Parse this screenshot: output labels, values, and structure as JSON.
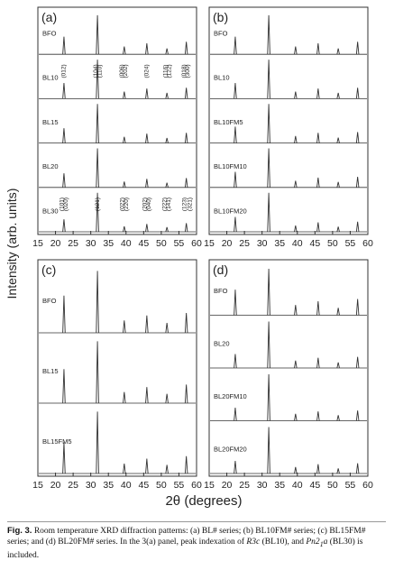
{
  "figure": {
    "ylabel": "Intensity (arb. units)",
    "xlabel": "2θ (degrees)"
  },
  "chart_data": [
    {
      "type": "xrd",
      "panel": "(a)",
      "xlim": [
        15,
        60
      ],
      "xticks": [
        15,
        20,
        25,
        30,
        35,
        40,
        45,
        50,
        55,
        60
      ],
      "color": "#333333",
      "x": [
        22.4,
        31.9,
        39.5,
        45.9,
        51.6,
        57.1
      ],
      "series": [
        {
          "name": "BFO",
          "values": [
            45,
            100,
            20,
            28,
            15,
            32
          ]
        },
        {
          "name": "BL10",
          "values": [
            40,
            100,
            18,
            26,
            15,
            28
          ],
          "annotations": [
            {
              "text": "(012)",
              "x": 22.4
            },
            {
              "text": "(104)",
              "x": 31.4
            },
            {
              "text": "(110)",
              "x": 32.6
            },
            {
              "text": "(006)",
              "x": 38.9
            },
            {
              "text": "(202)",
              "x": 39.9
            },
            {
              "text": "(024)",
              "x": 45.9
            },
            {
              "text": "(116)",
              "x": 51.3
            },
            {
              "text": "(122)",
              "x": 52.3
            },
            {
              "text": "(018)",
              "x": 56.5
            },
            {
              "text": "(300)",
              "x": 57.5
            }
          ]
        },
        {
          "name": "BL15",
          "values": [
            38,
            100,
            16,
            24,
            13,
            26
          ]
        },
        {
          "name": "BL20",
          "values": [
            36,
            100,
            15,
            22,
            12,
            24
          ]
        },
        {
          "name": "BL30",
          "values": [
            32,
            100,
            14,
            20,
            12,
            22
          ],
          "annotations": [
            {
              "text": "(101)",
              "x": 21.8
            },
            {
              "text": "(020)",
              "x": 23.0
            },
            {
              "text": "(121)",
              "x": 32.0
            },
            {
              "text": "(022)",
              "x": 39.0
            },
            {
              "text": "(220)",
              "x": 40.1
            },
            {
              "text": "(202)",
              "x": 45.4
            },
            {
              "text": "(040)",
              "x": 46.5
            },
            {
              "text": "(222)",
              "x": 51.0
            },
            {
              "text": "(141)",
              "x": 52.1
            },
            {
              "text": "(123)",
              "x": 56.6
            },
            {
              "text": "(321)",
              "x": 58.2
            }
          ]
        }
      ]
    },
    {
      "type": "xrd",
      "panel": "(b)",
      "xlim": [
        15,
        60
      ],
      "xticks": [
        15,
        20,
        25,
        30,
        35,
        40,
        45,
        50,
        55,
        60
      ],
      "color": "#333333",
      "x": [
        22.4,
        31.9,
        39.5,
        45.9,
        51.6,
        57.1
      ],
      "series": [
        {
          "name": "BFO",
          "values": [
            45,
            100,
            20,
            28,
            15,
            32
          ]
        },
        {
          "name": "BL10",
          "values": [
            40,
            100,
            18,
            26,
            15,
            28
          ]
        },
        {
          "name": "BL10FM5",
          "values": [
            42,
            100,
            18,
            26,
            14,
            28
          ]
        },
        {
          "name": "BL10FM10",
          "values": [
            40,
            100,
            17,
            25,
            14,
            27
          ]
        },
        {
          "name": "BL10FM20",
          "values": [
            38,
            100,
            16,
            24,
            13,
            26
          ]
        }
      ]
    },
    {
      "type": "xrd",
      "panel": "(c)",
      "xlim": [
        15,
        60
      ],
      "xticks": [
        15,
        20,
        25,
        30,
        35,
        40,
        45,
        50,
        55,
        60
      ],
      "color": "#333333",
      "x": [
        22.4,
        31.9,
        39.5,
        45.9,
        51.6,
        57.1
      ],
      "series": [
        {
          "name": "BFO",
          "values": [
            60,
            100,
            20,
            28,
            16,
            32
          ]
        },
        {
          "name": "BL15",
          "values": [
            55,
            100,
            18,
            26,
            15,
            30
          ]
        },
        {
          "name": "BL15FM5",
          "values": [
            50,
            100,
            16,
            24,
            14,
            28
          ]
        }
      ]
    },
    {
      "type": "xrd",
      "panel": "(d)",
      "xlim": [
        15,
        60
      ],
      "xticks": [
        15,
        20,
        25,
        30,
        35,
        40,
        45,
        50,
        55,
        60
      ],
      "color": "#333333",
      "x": [
        22.4,
        31.9,
        39.5,
        45.9,
        51.6,
        57.1
      ],
      "series": [
        {
          "name": "BFO",
          "values": [
            55,
            100,
            22,
            30,
            16,
            35
          ]
        },
        {
          "name": "BL20",
          "values": [
            30,
            100,
            16,
            22,
            12,
            24
          ]
        },
        {
          "name": "BL20FM10",
          "values": [
            28,
            100,
            15,
            20,
            12,
            22
          ]
        },
        {
          "name": "BL20FM20",
          "values": [
            27,
            100,
            14,
            20,
            11,
            22
          ]
        }
      ]
    }
  ],
  "caption": {
    "label": "Fig. 3.",
    "runs": [
      " Room temperature XRD diffraction patterns: (a) BL# series; (b) BL10FM# series; (c) BL15FM# series; and (d) BL20FM# series. In the 3(a) panel, peak indexation of ",
      "R3c",
      " (BL10), and ",
      "Pn2",
      "1",
      "a",
      " (BL30) is included."
    ]
  }
}
